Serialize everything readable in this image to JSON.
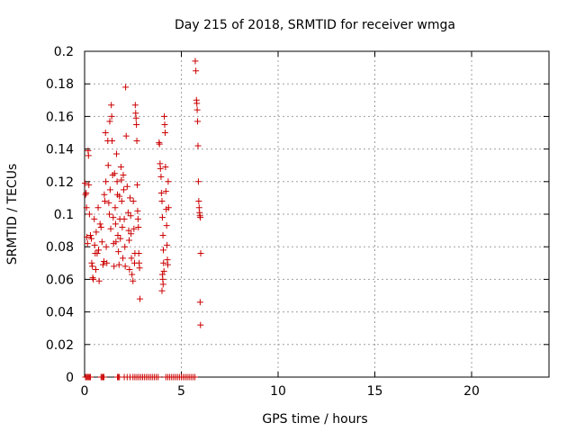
{
  "chart_data": {
    "type": "scatter",
    "title": "Day 215 of 2018, SRMTID for receiver wmga",
    "xlabel": "GPS time / hours",
    "ylabel": "SRMTID / TECUs",
    "xlim": [
      0,
      24
    ],
    "ylim": [
      0,
      0.2
    ],
    "xticks": [
      0,
      5,
      10,
      15,
      20
    ],
    "yticks": [
      0,
      0.02,
      0.04,
      0.06,
      0.08,
      0.1,
      0.12,
      0.14,
      0.16,
      0.18,
      0.2
    ],
    "ytick_labels": [
      "0",
      "0.02",
      "0.04",
      "0.06",
      "0.08",
      "0.1",
      "0.12",
      "0.14",
      "0.16",
      "0.18",
      "0.2"
    ],
    "grid": true,
    "legend": "none",
    "marker": "plus",
    "color": "#cc0000",
    "series": [
      {
        "points": [
          [
            0.02,
            0.119
          ],
          [
            0.05,
            0.112
          ],
          [
            0.08,
            0.113
          ],
          [
            0.1,
            0.104
          ],
          [
            0.12,
            0.086
          ],
          [
            0.15,
            0.082
          ],
          [
            0.18,
            0.139
          ],
          [
            0.2,
            0.136
          ],
          [
            0.22,
            0.118
          ],
          [
            0.25,
            0.1
          ],
          [
            0.3,
            0.087
          ],
          [
            0.35,
            0.085
          ],
          [
            0.37,
            0.07
          ],
          [
            0.4,
            0.068
          ],
          [
            0.42,
            0.061
          ],
          [
            0.45,
            0.06
          ],
          [
            0.5,
            0.097
          ],
          [
            0.52,
            0.081
          ],
          [
            0.55,
            0.076
          ],
          [
            0.58,
            0.066
          ],
          [
            0.6,
            0.089
          ],
          [
            0.65,
            0.076
          ],
          [
            0.7,
            0.104
          ],
          [
            0.72,
            0.078
          ],
          [
            0.75,
            0.059
          ],
          [
            0.8,
            0.094
          ],
          [
            0.85,
            0.092
          ],
          [
            0.9,
            0.083
          ],
          [
            0.95,
            0.069
          ],
          [
            1.0,
            0.071
          ],
          [
            1.02,
            0.112
          ],
          [
            1.05,
            0.108
          ],
          [
            1.08,
            0.15
          ],
          [
            1.1,
            0.12
          ],
          [
            1.12,
            0.08
          ],
          [
            1.15,
            0.07
          ],
          [
            1.2,
            0.145
          ],
          [
            1.22,
            0.13
          ],
          [
            1.25,
            0.107
          ],
          [
            1.28,
            0.1
          ],
          [
            1.3,
            0.157
          ],
          [
            1.32,
            0.115
          ],
          [
            1.35,
            0.091
          ],
          [
            1.38,
            0.167
          ],
          [
            1.4,
            0.16
          ],
          [
            1.42,
            0.145
          ],
          [
            1.45,
            0.124
          ],
          [
            1.48,
            0.098
          ],
          [
            1.5,
            0.082
          ],
          [
            1.52,
            0.068
          ],
          [
            1.55,
            0.125
          ],
          [
            1.58,
            0.104
          ],
          [
            1.6,
            0.094
          ],
          [
            1.62,
            0.083
          ],
          [
            1.65,
            0.137
          ],
          [
            1.68,
            0.12
          ],
          [
            1.7,
            0.112
          ],
          [
            1.72,
            0.087
          ],
          [
            1.75,
            0.077
          ],
          [
            1.78,
            0.069
          ],
          [
            1.8,
            0.111
          ],
          [
            1.82,
            0.097
          ],
          [
            1.85,
            0.085
          ],
          [
            1.88,
            0.129
          ],
          [
            1.9,
            0.121
          ],
          [
            1.92,
            0.108
          ],
          [
            1.95,
            0.092
          ],
          [
            1.98,
            0.073
          ],
          [
            2.0,
            0.124
          ],
          [
            2.02,
            0.115
          ],
          [
            2.05,
            0.097
          ],
          [
            2.08,
            0.08
          ],
          [
            2.1,
            0.068
          ],
          [
            2.12,
            0.178
          ],
          [
            2.15,
            0.148
          ],
          [
            2.2,
            0.117
          ],
          [
            2.25,
            0.101
          ],
          [
            2.28,
            0.09
          ],
          [
            2.3,
            0.084
          ],
          [
            2.32,
            0.066
          ],
          [
            2.35,
            0.11
          ],
          [
            2.38,
            0.099
          ],
          [
            2.4,
            0.088
          ],
          [
            2.42,
            0.073
          ],
          [
            2.45,
            0.063
          ],
          [
            2.5,
            0.059
          ],
          [
            2.52,
            0.108
          ],
          [
            2.55,
            0.091
          ],
          [
            2.58,
            0.07
          ],
          [
            2.6,
            0.076
          ],
          [
            2.62,
            0.167
          ],
          [
            2.64,
            0.162
          ],
          [
            2.66,
            0.159
          ],
          [
            2.68,
            0.155
          ],
          [
            2.7,
            0.145
          ],
          [
            2.72,
            0.118
          ],
          [
            2.74,
            0.102
          ],
          [
            2.76,
            0.097
          ],
          [
            2.78,
            0.092
          ],
          [
            2.8,
            0.076
          ],
          [
            2.82,
            0.07
          ],
          [
            2.84,
            0.067
          ],
          [
            2.86,
            0.048
          ],
          [
            3.85,
            0.144
          ],
          [
            3.87,
            0.143
          ],
          [
            3.9,
            0.131
          ],
          [
            3.92,
            0.128
          ],
          [
            3.95,
            0.123
          ],
          [
            3.97,
            0.113
          ],
          [
            4.0,
            0.108
          ],
          [
            4.02,
            0.098
          ],
          [
            4.05,
            0.087
          ],
          [
            4.07,
            0.078
          ],
          [
            4.08,
            0.07
          ],
          [
            4.1,
            0.065
          ],
          [
            4.12,
            0.16
          ],
          [
            4.14,
            0.155
          ],
          [
            4.16,
            0.15
          ],
          [
            4.18,
            0.129
          ],
          [
            4.2,
            0.114
          ],
          [
            4.22,
            0.103
          ],
          [
            4.24,
            0.093
          ],
          [
            4.26,
            0.081
          ],
          [
            4.28,
            0.072
          ],
          [
            4.3,
            0.069
          ],
          [
            4.32,
            0.12
          ],
          [
            4.34,
            0.104
          ],
          [
            4.02,
            0.063
          ],
          [
            4.04,
            0.06
          ],
          [
            4.06,
            0.057
          ],
          [
            4.0,
            0.053
          ],
          [
            5.72,
            0.194
          ],
          [
            5.75,
            0.188
          ],
          [
            5.78,
            0.17
          ],
          [
            5.8,
            0.168
          ],
          [
            5.82,
            0.164
          ],
          [
            5.84,
            0.157
          ],
          [
            5.86,
            0.142
          ],
          [
            5.88,
            0.12
          ],
          [
            5.9,
            0.108
          ],
          [
            5.92,
            0.104
          ],
          [
            5.94,
            0.101
          ],
          [
            5.96,
            0.099
          ],
          [
            5.98,
            0.098
          ],
          [
            6.0,
            0.076
          ],
          [
            5.97,
            0.046
          ],
          [
            5.99,
            0.032
          ],
          [
            0.05,
            0.0
          ],
          [
            0.1,
            0.0
          ],
          [
            0.15,
            0.0
          ],
          [
            0.2,
            0.0
          ],
          [
            0.25,
            0.0
          ],
          [
            0.3,
            0.0
          ],
          [
            0.85,
            0.0
          ],
          [
            0.9,
            0.0
          ],
          [
            0.95,
            0.0
          ],
          [
            1.0,
            0.0
          ],
          [
            1.7,
            0.0
          ],
          [
            1.75,
            0.0
          ],
          [
            1.8,
            0.0
          ],
          [
            2.05,
            0.0
          ],
          [
            2.2,
            0.0
          ],
          [
            2.35,
            0.0
          ],
          [
            2.5,
            0.0
          ],
          [
            2.6,
            0.0
          ],
          [
            2.7,
            0.0
          ],
          [
            2.8,
            0.0
          ],
          [
            2.9,
            0.0
          ],
          [
            3.0,
            0.0
          ],
          [
            3.1,
            0.0
          ],
          [
            3.2,
            0.0
          ],
          [
            3.3,
            0.0
          ],
          [
            3.4,
            0.0
          ],
          [
            3.5,
            0.0
          ],
          [
            3.6,
            0.0
          ],
          [
            3.7,
            0.0
          ],
          [
            3.8,
            0.0
          ],
          [
            4.2,
            0.0
          ],
          [
            4.3,
            0.0
          ],
          [
            4.4,
            0.0
          ],
          [
            4.5,
            0.0
          ],
          [
            4.6,
            0.0
          ],
          [
            4.7,
            0.0
          ],
          [
            4.8,
            0.0
          ],
          [
            4.9,
            0.0
          ],
          [
            5.0,
            0.0
          ],
          [
            5.1,
            0.0
          ],
          [
            5.2,
            0.0
          ],
          [
            5.3,
            0.0
          ],
          [
            5.4,
            0.0
          ],
          [
            5.5,
            0.0
          ],
          [
            5.6,
            0.0
          ],
          [
            5.7,
            0.0
          ]
        ]
      }
    ]
  }
}
